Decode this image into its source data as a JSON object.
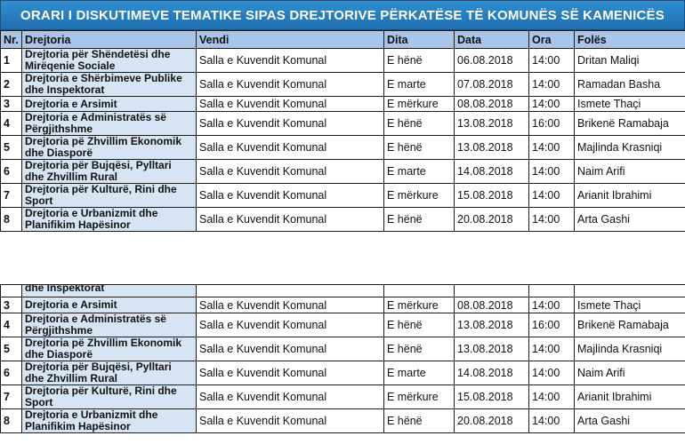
{
  "title": "ORARI I DISKUTIMEVE TEMATIKE SIPAS DREJTORIVE PËRKATËSE TË KOMUNËS SË KAMENICËS",
  "columns": [
    "Nr.",
    "Drejtoria",
    "Vendi",
    "Dita",
    "Data",
    "Ora",
    "Folës"
  ],
  "rows": [
    {
      "nr": "1",
      "dept": "Drejtoria për Shëndetësi dhe Mirëqenie Sociale",
      "vendi": "Salla e Kuvendit Komunal",
      "dita": "E hënë",
      "data": "06.08.2018",
      "ora": "14:00",
      "foles": "Dritan Maliqi"
    },
    {
      "nr": "2",
      "dept": "Drejtoria e Shërbimeve Publike dhe Inspektorat",
      "vendi": "Salla e Kuvendit Komunal",
      "dita": "E marte",
      "data": "07.08.2018",
      "ora": "14:00",
      "foles": "Ramadan Basha"
    },
    {
      "nr": "3",
      "dept": "Drejtoria e Arsimit",
      "vendi": "Salla e Kuvendit Komunal",
      "dita": "E mërkure",
      "data": "08.08.2018",
      "ora": "14:00",
      "foles": "Ismete Thaçi"
    },
    {
      "nr": "4",
      "dept": "Drejtoria e Administratës së Përgjithshme",
      "vendi": "Salla e Kuvendit Komunal",
      "dita": "E hënë",
      "data": "13.08.2018",
      "ora": "16:00",
      "foles": "Brikenë Ramabaja"
    },
    {
      "nr": "5",
      "dept": "Drejtoria pë Zhvillim Ekonomik dhe Diasporë",
      "vendi": "Salla e Kuvendit Komunal",
      "dita": "E hënë",
      "data": "13.08.2018",
      "ora": "14:00",
      "foles": "Majlinda Krasniqi"
    },
    {
      "nr": "6",
      "dept": "Drejtoria për Bujqësi, Pylltari dhe Zhvillim Rural",
      "vendi": "Salla e Kuvendit Komunal",
      "dita": "E marte",
      "data": "14.08.2018",
      "ora": "14:00",
      "foles": "Naim Arifi"
    },
    {
      "nr": "7",
      "dept": "Drejtoria për Kulturë, Rini dhe Sport",
      "vendi": "Salla e Kuvendit Komunal",
      "dita": "E mërkure",
      "data": "15.08.2018",
      "ora": "14:00",
      "foles": "Arianit Ibrahimi"
    },
    {
      "nr": "8",
      "dept": "Drejtoria e Urbanizmit dhe Planifikim Hapësinor",
      "vendi": "Salla e Kuvendit Komunal",
      "dita": "E hënë",
      "data": "20.08.2018",
      "ora": "14:00",
      "foles": "Arta Gashi"
    }
  ],
  "bottom_partial_dept": "dhe Inspektorat"
}
